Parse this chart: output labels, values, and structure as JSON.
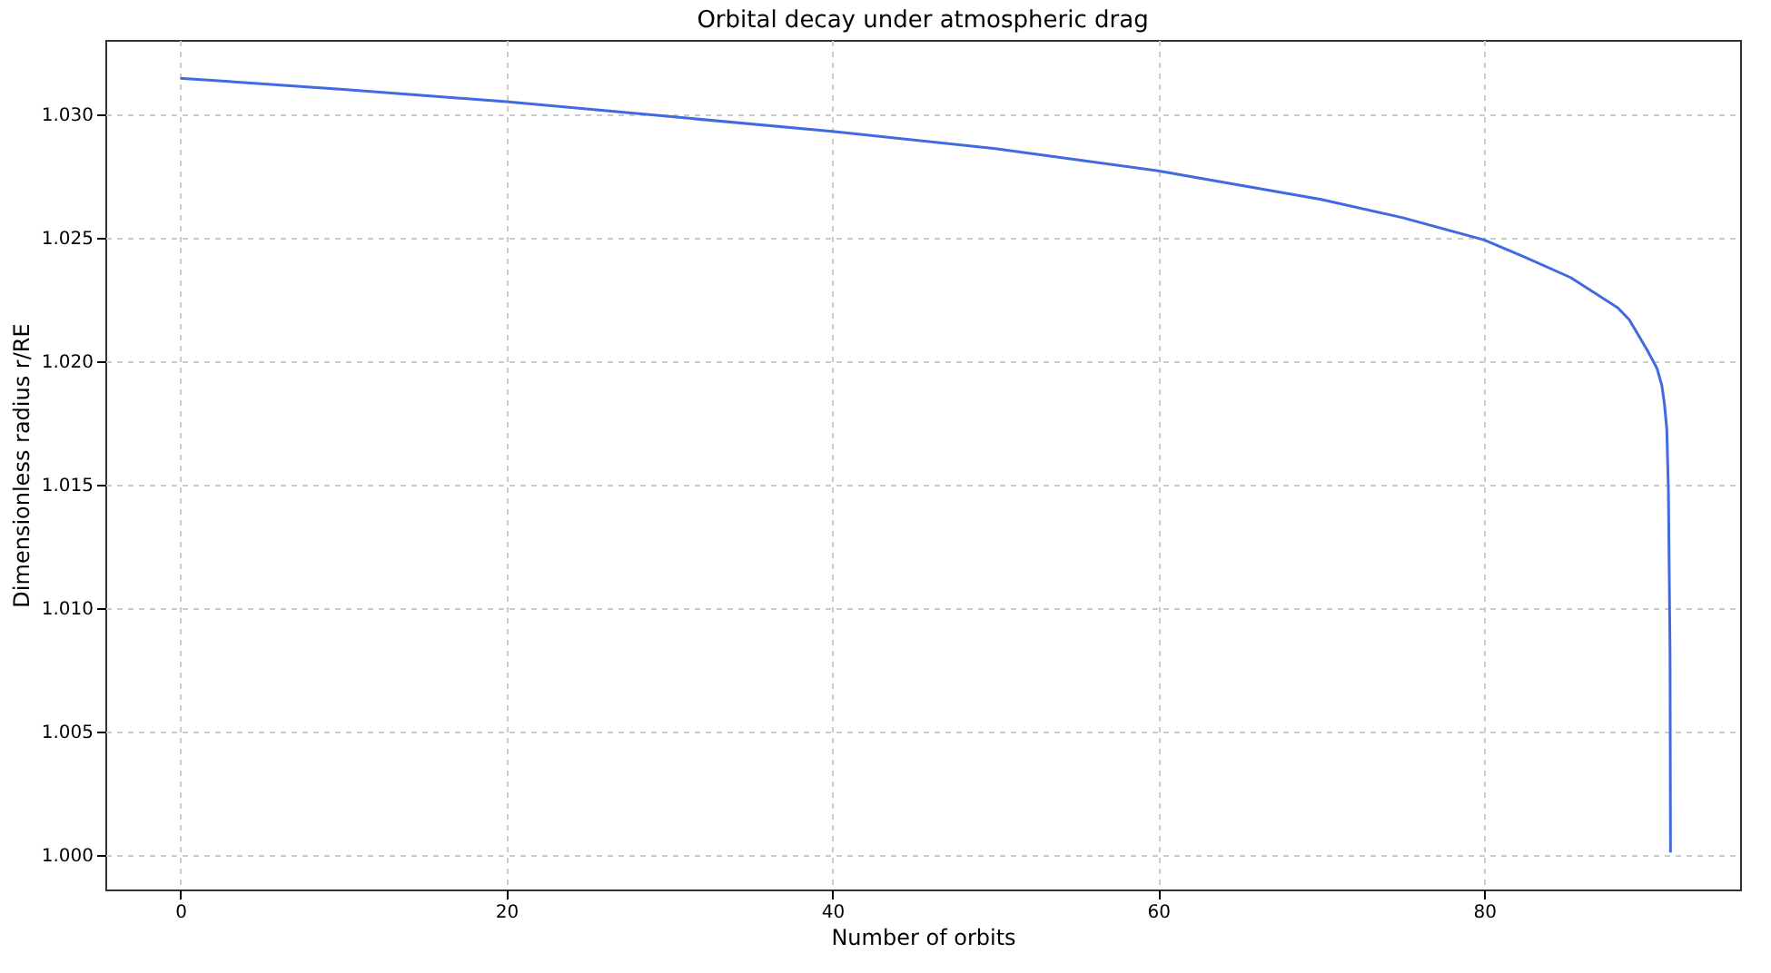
{
  "chart_data": {
    "type": "line",
    "title": "Orbital decay under atmospheric drag",
    "xlabel": "Number of orbits",
    "ylabel": "Dimensionless radius r/RE",
    "series": [
      {
        "color": "#4169e1",
        "x": [
          0,
          10,
          20,
          30,
          40,
          50,
          60,
          70,
          75,
          80,
          82.5,
          85.3,
          88.2,
          88.9,
          90.0,
          90.6,
          90.9,
          91.06,
          91.2,
          91.3,
          91.4,
          91.43
        ],
        "values": [
          1.03145,
          1.031,
          1.0305,
          1.0299,
          1.0293,
          1.0286,
          1.0277,
          1.02654,
          1.0258,
          1.0249,
          1.0242,
          1.02338,
          1.02215,
          1.02167,
          1.02044,
          1.0197,
          1.019,
          1.01824,
          1.01726,
          1.0148,
          1.00818,
          1.0001
        ]
      }
    ],
    "xlim": [
      -4.6,
      95.7
    ],
    "ylim": [
      0.9986,
      1.033
    ],
    "xticks": [
      0,
      20,
      40,
      60,
      80
    ],
    "yticks": [
      {
        "value": 1.0,
        "label": "1.000"
      },
      {
        "value": 1.005,
        "label": "1.005"
      },
      {
        "value": 1.01,
        "label": "1.010"
      },
      {
        "value": 1.015,
        "label": "1.015"
      },
      {
        "value": 1.02,
        "label": "1.020"
      },
      {
        "value": 1.025,
        "label": "1.025"
      },
      {
        "value": 1.03,
        "label": "1.030"
      }
    ],
    "grid": true,
    "line_style": "solid",
    "marker": "none"
  }
}
